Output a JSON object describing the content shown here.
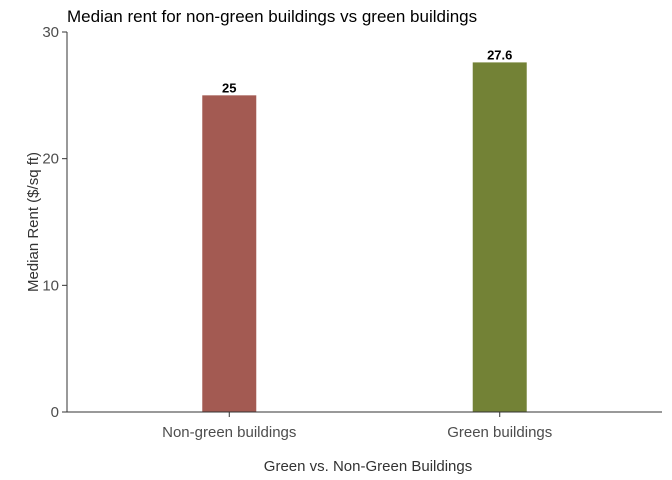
{
  "chart_data": {
    "type": "bar",
    "title": "Median rent for non-green buildings vs green buildings",
    "xlabel": "Green vs. Non-Green Buildings",
    "ylabel": "Median Rent ($/sq ft)",
    "categories": [
      "Non-green buildings",
      "Green buildings"
    ],
    "values": [
      25,
      27.6
    ],
    "data_labels": [
      "25",
      "27.6"
    ],
    "colors": [
      "#a35a52",
      "#738236"
    ],
    "ylim": [
      0,
      30
    ],
    "yticks": [
      0,
      10,
      20,
      30
    ],
    "grid": false,
    "legend": "none"
  }
}
